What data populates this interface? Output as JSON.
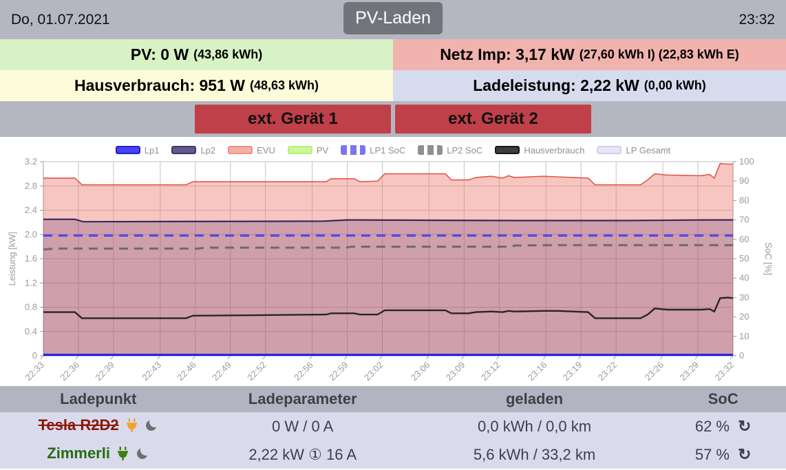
{
  "header": {
    "date": "Do, 01.07.2021",
    "mode": "PV-Laden",
    "time": "23:32"
  },
  "status": {
    "pv": {
      "main": "PV: 0 W",
      "sub": "(43,86 kWh)"
    },
    "netz": {
      "main": "Netz Imp: 3,17 kW",
      "sub": "(27,60 kWh I) (22,83 kWh E)"
    },
    "haus": {
      "main": "Hausverbrauch: 951 W",
      "sub": "(48,63 kWh)"
    },
    "lade": {
      "main": "Ladeleistung: 2,22 kW",
      "sub": "(0,00 kWh)"
    }
  },
  "devices": {
    "device1": "ext. Gerät 1",
    "device2": "ext. Gerät 2"
  },
  "icons": {
    "refresh": "↻"
  },
  "colors": {
    "topbar": "#b4b7c2",
    "ext_button": "#bf4048",
    "pv_bg": "#d9f2c5",
    "netz_bg": "#f1b3ae",
    "haus_bg": "#fdfcda",
    "lade_bg": "#d7dbee"
  },
  "chart_data": {
    "type": "line",
    "title": "",
    "xlabel": "",
    "ylabel_left": "Leistung [kW]",
    "ylabel_right": "SoC [%]",
    "ylim_left": [
      0,
      3.2
    ],
    "yticks_left": [
      0,
      0.4,
      0.8,
      1.2,
      1.6,
      2.0,
      2.4,
      2.8,
      3.2
    ],
    "ylim_right": [
      0,
      100
    ],
    "yticks_right": [
      0,
      10,
      20,
      30,
      40,
      50,
      60,
      70,
      80,
      90,
      100
    ],
    "grid": true,
    "legend_position": "top",
    "x_ticks": [
      [
        "22:33",
        0
      ],
      [
        "22:36",
        3
      ],
      [
        "22:39",
        6
      ],
      [
        "22:43",
        10
      ],
      [
        "22:46",
        13
      ],
      [
        "22:49",
        16
      ],
      [
        "22:52",
        19
      ],
      [
        "22:56",
        23
      ],
      [
        "22:59",
        26
      ],
      [
        "23:02",
        29
      ],
      [
        "23:06",
        33
      ],
      [
        "23:09",
        36
      ],
      [
        "23:12",
        39
      ],
      [
        "23:16",
        43
      ],
      [
        "23:19",
        46
      ],
      [
        "23:22",
        49
      ],
      [
        "23:26",
        53
      ],
      [
        "23:29",
        56
      ],
      [
        "23:32",
        59
      ]
    ],
    "legend": [
      {
        "label": "Lp1",
        "fill": "#4545f0",
        "border": "#2020d0",
        "dashed": false
      },
      {
        "label": "Lp2",
        "fill": "#625a8a",
        "border": "#3d3366",
        "dashed": false
      },
      {
        "label": "EVU",
        "fill": "#f4b0a6",
        "border": "#ef9085",
        "dashed": false
      },
      {
        "label": "PV",
        "fill": "#ccf797",
        "border": "#b7ef78",
        "dashed": false
      },
      {
        "label": "LP1 SoC",
        "fill": "#7a74ee",
        "border": "#7a74ee",
        "dashed": true
      },
      {
        "label": "LP2 SoC",
        "fill": "#8f8f93",
        "border": "#8f8f93",
        "dashed": true
      },
      {
        "label": "Hausverbrauch",
        "fill": "#3d3d3d",
        "border": "#161616",
        "dashed": false
      },
      {
        "label": "LP Gesamt",
        "fill": "#e6e6f8",
        "border": "#d0d0ea",
        "dashed": false
      }
    ],
    "series": [
      {
        "name": "EVU",
        "axis": "left",
        "color": "#e2574b",
        "width": 1.6,
        "fill": "rgba(235,120,108,0.42)",
        "points": [
          [
            0,
            2.93
          ],
          [
            2.7,
            2.93
          ],
          [
            3.3,
            2.82
          ],
          [
            12.2,
            2.82
          ],
          [
            12.8,
            2.87
          ],
          [
            24.2,
            2.87
          ],
          [
            24.6,
            2.92
          ],
          [
            26.6,
            2.92
          ],
          [
            27.1,
            2.87
          ],
          [
            28.6,
            2.88
          ],
          [
            29.2,
            3.0
          ],
          [
            34.4,
            3.0
          ],
          [
            34.9,
            2.9
          ],
          [
            36.4,
            2.9
          ],
          [
            37,
            2.94
          ],
          [
            38.3,
            2.96
          ],
          [
            39.3,
            2.93
          ],
          [
            39.8,
            2.97
          ],
          [
            40.3,
            2.94
          ],
          [
            42.8,
            2.96
          ],
          [
            44,
            2.95
          ],
          [
            46.6,
            2.93
          ],
          [
            47.2,
            2.82
          ],
          [
            51.1,
            2.82
          ],
          [
            51.7,
            2.9
          ],
          [
            52.3,
            3.0
          ],
          [
            53.4,
            2.98
          ],
          [
            56.3,
            2.97
          ],
          [
            57,
            2.99
          ],
          [
            57.4,
            2.93
          ],
          [
            57.9,
            3.17
          ],
          [
            58.6,
            3.16
          ],
          [
            59,
            3.16
          ]
        ]
      },
      {
        "name": "LP Gesamt",
        "axis": "left",
        "color": "#cdc9ea",
        "width": 1,
        "fill": "rgba(70,25,95,0.22)",
        "points": [
          [
            0,
            2.25
          ],
          [
            2.7,
            2.25
          ],
          [
            3.4,
            2.21
          ],
          [
            24,
            2.22
          ],
          [
            26,
            2.24
          ],
          [
            40,
            2.23
          ],
          [
            50,
            2.23
          ],
          [
            57,
            2.24
          ],
          [
            59,
            2.24
          ]
        ]
      },
      {
        "name": "LP1 SoC",
        "axis": "right",
        "color": "#584be0",
        "width": 3.5,
        "dash": "13 9",
        "points": [
          [
            0,
            62
          ],
          [
            59,
            62
          ]
        ]
      },
      {
        "name": "LP2 SoC",
        "axis": "right",
        "color": "#6f6876",
        "width": 3,
        "dash": "13 9",
        "points": [
          [
            0,
            54.8
          ],
          [
            0.9,
            55.2
          ],
          [
            13.2,
            55.2
          ],
          [
            13.9,
            55.7
          ],
          [
            25.8,
            55.7
          ],
          [
            26.4,
            56.2
          ],
          [
            39.8,
            56.2
          ],
          [
            40.4,
            56.8
          ],
          [
            43.5,
            57
          ],
          [
            59,
            57
          ]
        ]
      },
      {
        "name": "Lp2",
        "axis": "left",
        "color": "#352767",
        "width": 2.2,
        "points": [
          [
            0,
            2.25
          ],
          [
            2.7,
            2.25
          ],
          [
            3.4,
            2.21
          ],
          [
            24,
            2.22
          ],
          [
            26,
            2.24
          ],
          [
            40,
            2.23
          ],
          [
            50,
            2.23
          ],
          [
            57,
            2.24
          ],
          [
            59,
            2.24
          ]
        ]
      },
      {
        "name": "Hausverbrauch",
        "axis": "left",
        "color": "#262626",
        "width": 2.4,
        "points": [
          [
            0,
            0.72
          ],
          [
            2.7,
            0.72
          ],
          [
            3.3,
            0.62
          ],
          [
            12.2,
            0.62
          ],
          [
            12.8,
            0.66
          ],
          [
            24.2,
            0.68
          ],
          [
            24.6,
            0.7
          ],
          [
            26.6,
            0.7
          ],
          [
            27.1,
            0.68
          ],
          [
            28.6,
            0.68
          ],
          [
            29.2,
            0.75
          ],
          [
            34.4,
            0.75
          ],
          [
            34.9,
            0.7
          ],
          [
            36.4,
            0.7
          ],
          [
            37,
            0.72
          ],
          [
            38.3,
            0.73
          ],
          [
            39.3,
            0.72
          ],
          [
            39.8,
            0.74
          ],
          [
            40.3,
            0.73
          ],
          [
            42.8,
            0.74
          ],
          [
            44,
            0.74
          ],
          [
            46.6,
            0.72
          ],
          [
            47.2,
            0.62
          ],
          [
            51.1,
            0.62
          ],
          [
            51.7,
            0.68
          ],
          [
            52.3,
            0.78
          ],
          [
            53.4,
            0.76
          ],
          [
            56.3,
            0.76
          ],
          [
            57,
            0.77
          ],
          [
            57.4,
            0.73
          ],
          [
            57.9,
            0.95
          ],
          [
            58.6,
            0.96
          ],
          [
            59,
            0.95
          ]
        ]
      },
      {
        "name": "PV",
        "axis": "left",
        "color": "#79c832",
        "width": 2,
        "points": [
          [
            0,
            0.015
          ],
          [
            59,
            0.015
          ]
        ]
      },
      {
        "name": "Lp1",
        "axis": "left",
        "color": "#1b16e6",
        "width": 3,
        "points": [
          [
            0,
            0.015
          ],
          [
            59,
            0.015
          ]
        ]
      }
    ]
  },
  "table": {
    "headers": [
      "Ladepunkt",
      "Ladeparameter",
      "geladen",
      "SoC"
    ],
    "rows": [
      {
        "name": "Tesla R2D2",
        "params": "0 W / 0 A",
        "charged": "0,0 kWh / 0,0 km",
        "soc": "62 %"
      },
      {
        "name": "Zimmerli",
        "params": "2,22 kW ① 16 A",
        "charged": "5,6 kWh / 33,2 km",
        "soc": "57 %"
      }
    ]
  }
}
